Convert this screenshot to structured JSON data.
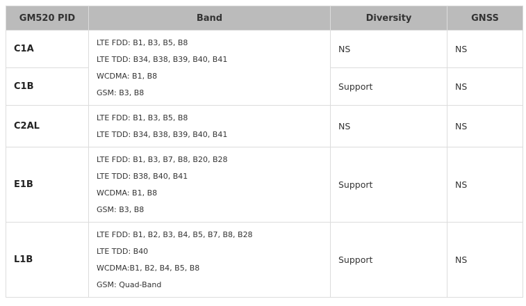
{
  "headers": [
    "GM520 PID",
    "Band",
    "Diversity",
    "GNSS"
  ],
  "rows": [
    {
      "pid": "C1A",
      "diversity": "NS",
      "gnss": "NS"
    },
    {
      "pid": "C1B",
      "diversity": "Support",
      "gnss": "NS"
    },
    {
      "pid": "C2AL",
      "diversity": "NS",
      "gnss": "NS"
    },
    {
      "pid": "E1B",
      "diversity": "Support",
      "gnss": "NS"
    },
    {
      "pid": "L1B",
      "diversity": "Support",
      "gnss": "NS"
    }
  ],
  "bands": [
    [
      "LTE FDD: B1, B3, B5, B8",
      "LTE TDD: B34, B38, B39, B40, B41",
      "WCDMA: B1, B8",
      "GSM: B3, B8"
    ],
    [
      "LTE FDD: B1, B3, B5, B8",
      "LTE TDD: B34, B38, B39, B40, B41"
    ],
    [
      "LTE FDD: B1, B3, B7, B8, B20, B28",
      "LTE TDD: B38, B40, B41",
      "WCDMA: B1, B8",
      "GSM: B3, B8"
    ],
    [
      "LTE FDD: B1, B2, B3, B4, B5, B7, B8, B28",
      "LTE TDD: B40",
      "WCDMA:B1, B2, B4, B5, B8",
      "GSM: Quad-Band"
    ]
  ]
}
